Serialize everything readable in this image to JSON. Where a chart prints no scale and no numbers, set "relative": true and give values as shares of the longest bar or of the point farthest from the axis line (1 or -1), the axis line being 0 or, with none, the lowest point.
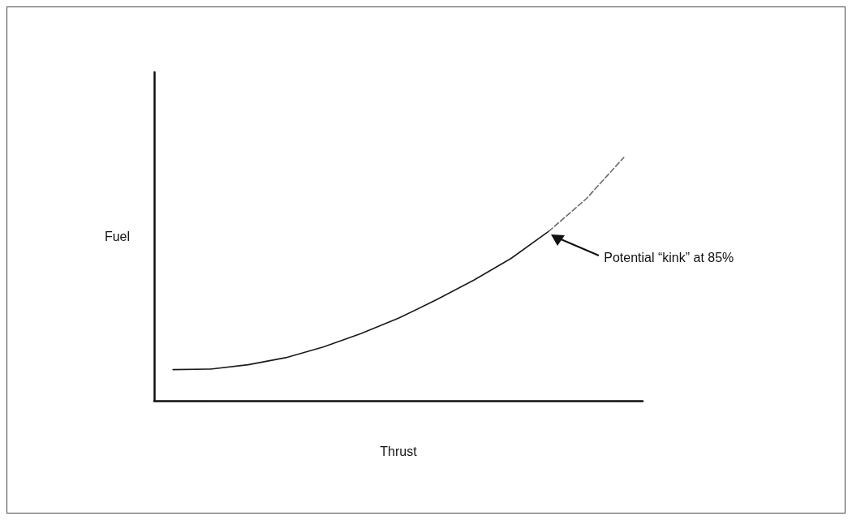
{
  "chart_data": {
    "type": "line",
    "xlabel": "Thrust",
    "ylabel": "Fuel",
    "relative": true,
    "categories": [
      null,
      null,
      null,
      null,
      null,
      null,
      null,
      null,
      null,
      null,
      null,
      null,
      null
    ],
    "series": [
      {
        "color": "#1a1a1a",
        "line_style": "solid",
        "values": [
          0.128,
          0.13,
          0.148,
          0.177,
          0.221,
          0.276,
          0.339,
          0.414,
          0.495,
          0.585,
          0.696,
          null,
          null
        ]
      },
      {
        "color": "#6b6b6b",
        "line_style": "dashed",
        "values": [
          null,
          null,
          null,
          null,
          null,
          null,
          null,
          null,
          null,
          null,
          0.696,
          0.83,
          1.0
        ]
      }
    ],
    "annotations": [
      "Potential “kink” at 85%"
    ]
  }
}
